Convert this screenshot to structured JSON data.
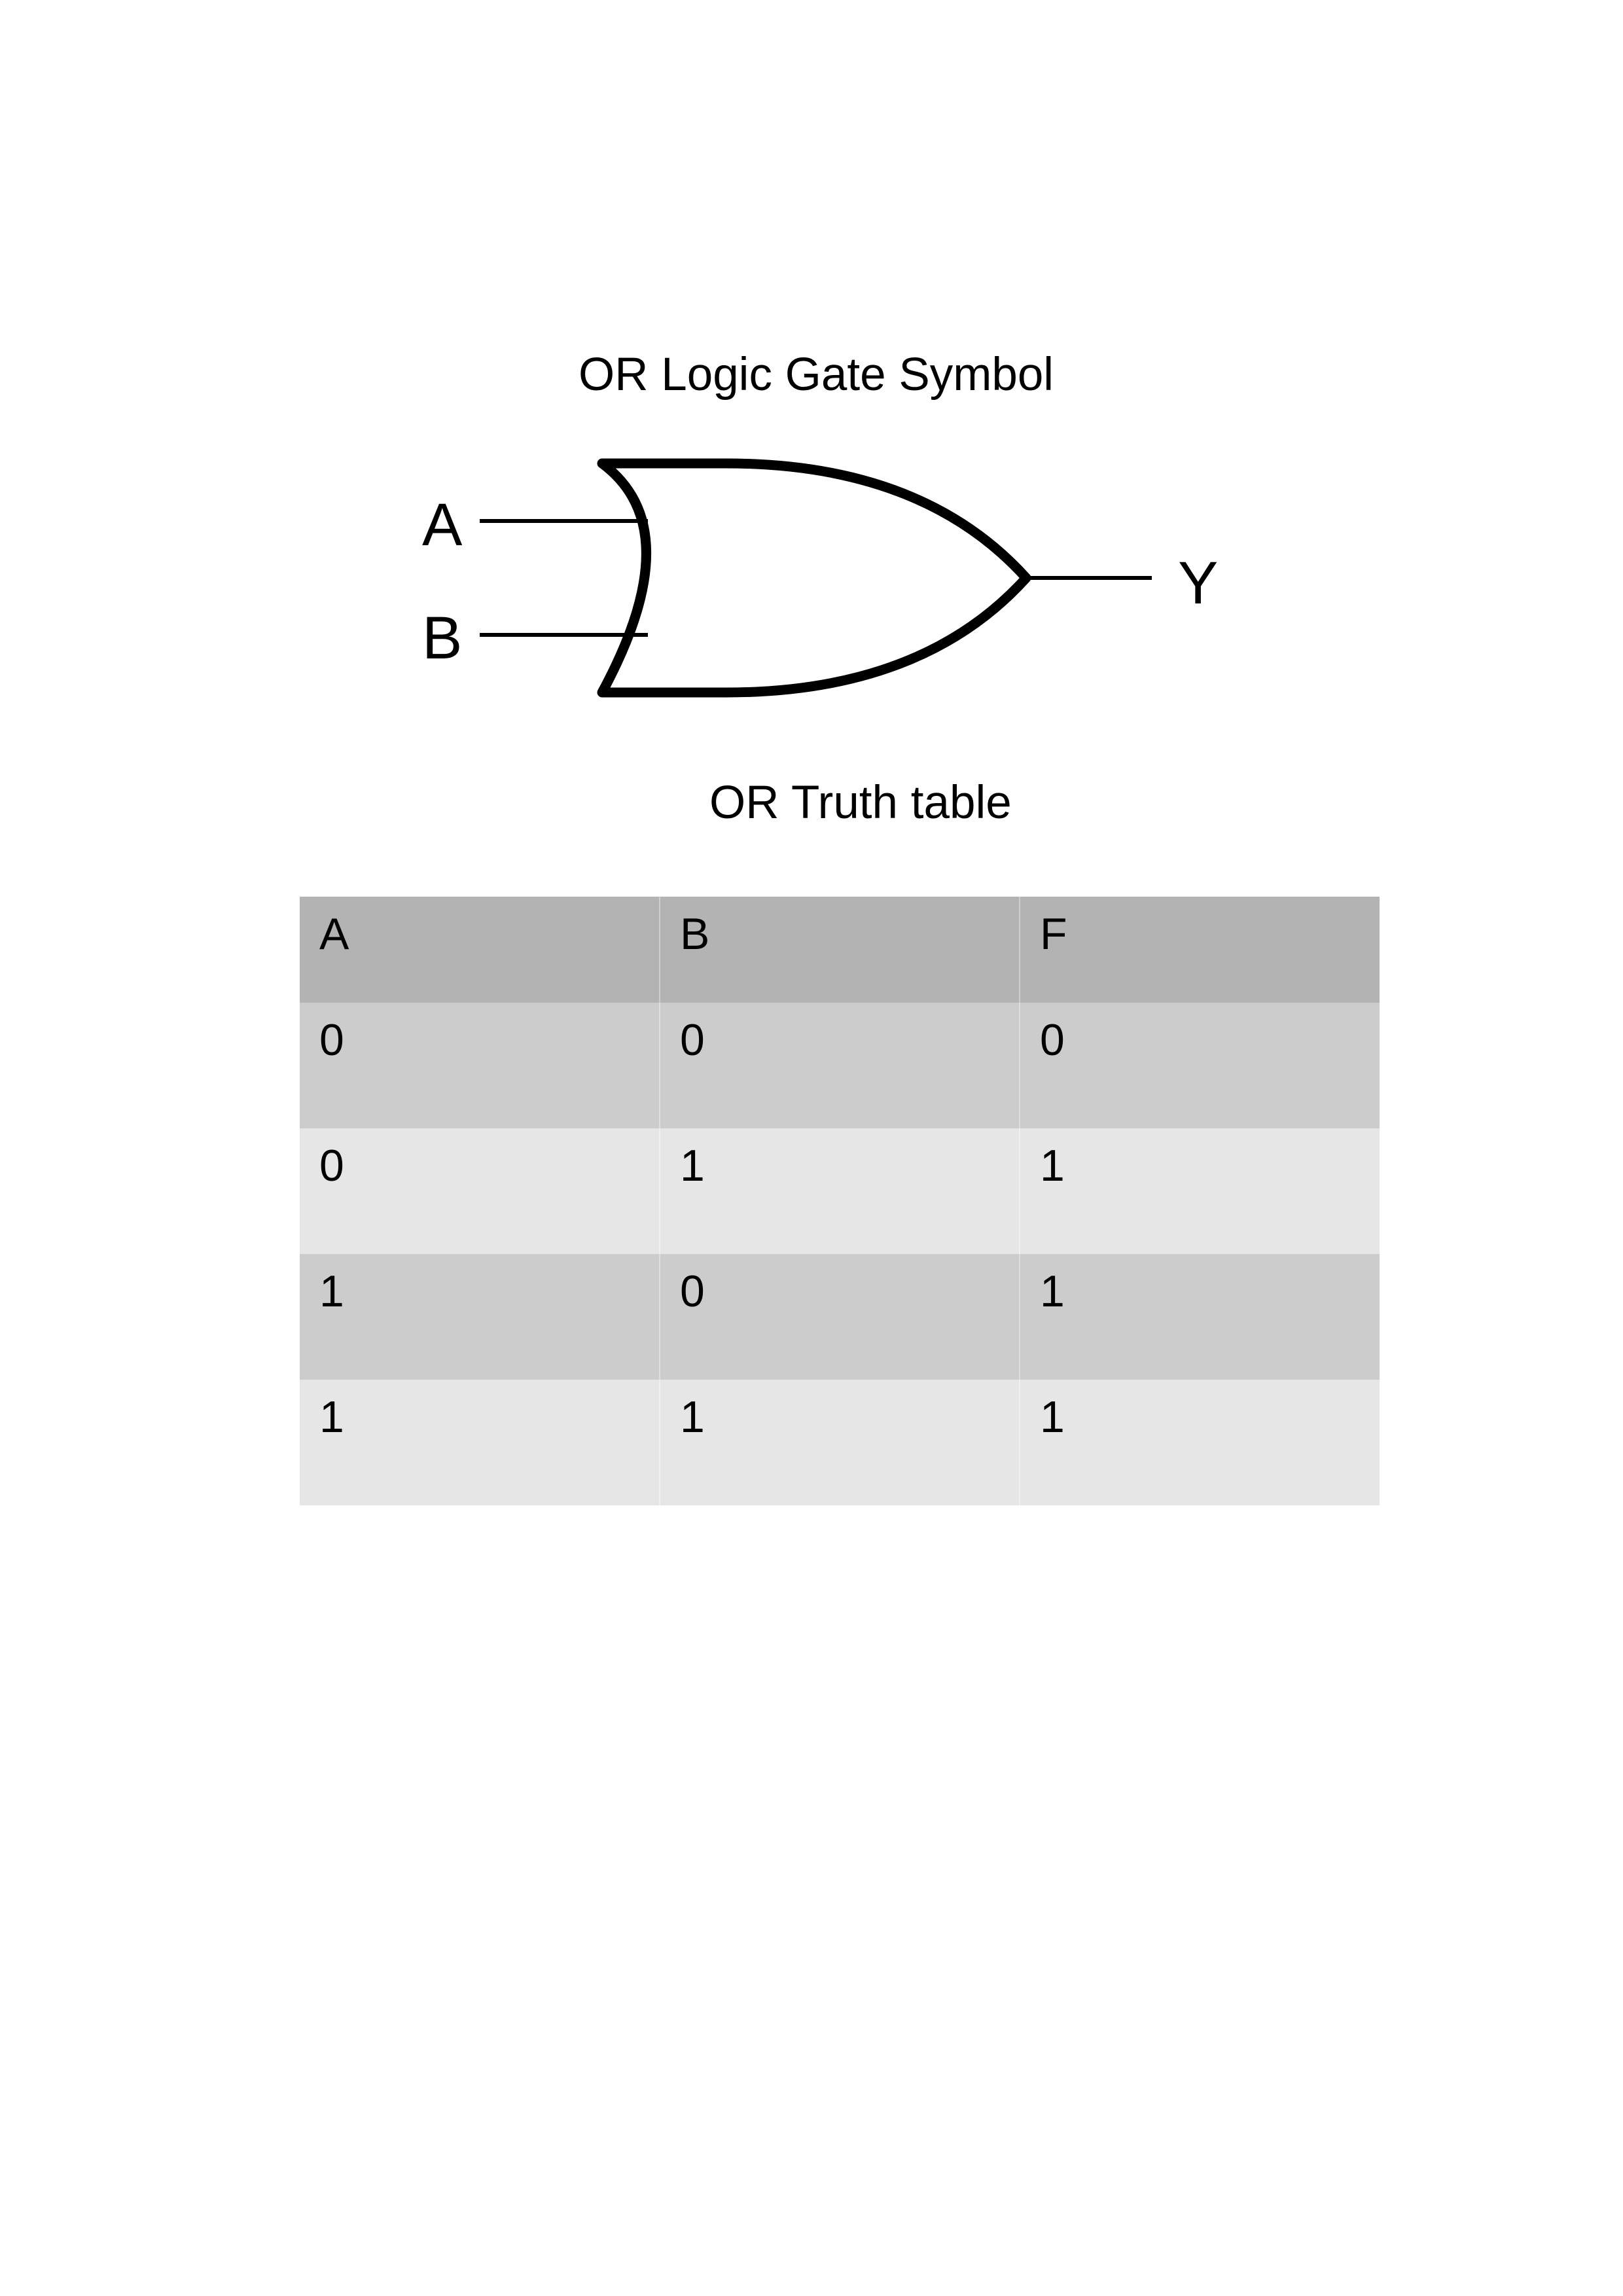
{
  "gate": {
    "title": "OR Logic Gate Symbol",
    "input_a": "A",
    "input_b": "B",
    "output": "Y"
  },
  "truth_table": {
    "title": "OR Truth table",
    "headers": [
      "A",
      "B",
      "F"
    ],
    "rows": [
      [
        "0",
        "0",
        "0"
      ],
      [
        "0",
        "1",
        "1"
      ],
      [
        "1",
        "0",
        "1"
      ],
      [
        "1",
        "1",
        "1"
      ]
    ]
  }
}
